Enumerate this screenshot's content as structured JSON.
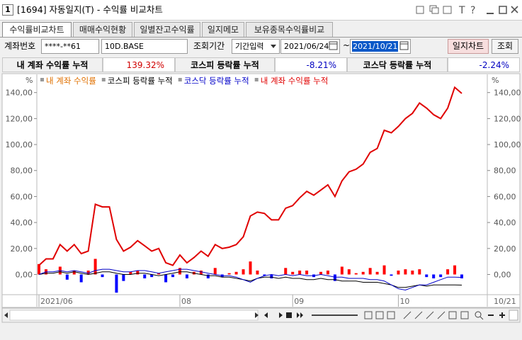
{
  "window": {
    "icon": "1",
    "title": "[1694] 자동일지(T) - 수익률 비교차트",
    "tool_icons": [
      "T",
      "?"
    ]
  },
  "tabs": [
    "수익률비교차트",
    "매매수익현황",
    "일별잔고수익률",
    "일지메모",
    "보유종목수익률비교"
  ],
  "form": {
    "account_label": "계좌번호",
    "account": "****-**61",
    "account_name": "10D.BASE",
    "period_label": "조회기간",
    "period_mode": "기간입력",
    "start_date": "2021/06/24",
    "separator": "~",
    "end_date": "2021/10/21",
    "buttons": [
      "일지차트",
      "조회"
    ]
  },
  "summary": [
    {
      "label": "내 계좌 수익률 누적",
      "value": "139.32%"
    },
    {
      "label": "코스피 등락률 누적",
      "value": "-8.21%"
    },
    {
      "label": "코스닥 등락률 누적",
      "value": "-2.24%"
    }
  ],
  "chart_data": {
    "type": "combo",
    "y_unit": "%",
    "x_end_label": "10/21",
    "categories": [
      "2021/06",
      null,
      null,
      null,
      null,
      null,
      null,
      null,
      null,
      null,
      null,
      null,
      null,
      null,
      null,
      null,
      null,
      null,
      null,
      null,
      "08",
      null,
      null,
      null,
      null,
      null,
      null,
      null,
      null,
      null,
      null,
      null,
      null,
      null,
      null,
      null,
      "09",
      null,
      null,
      null,
      null,
      null,
      null,
      null,
      null,
      null,
      null,
      null,
      null,
      null,
      null,
      "10",
      null,
      null,
      null,
      null,
      null,
      null,
      null,
      null,
      null
    ],
    "ylim": [
      -15,
      154
    ],
    "yticks": [
      {
        "value": 0,
        "label": "0,00"
      },
      {
        "value": 20,
        "label": "20,00"
      },
      {
        "value": 40,
        "label": "40,00"
      },
      {
        "value": 60,
        "label": "60,00"
      },
      {
        "value": 80,
        "label": "80,00"
      },
      {
        "value": 100,
        "label": "100,00"
      },
      {
        "value": 120,
        "label": "120,00"
      },
      {
        "value": 140,
        "label": "140,00"
      }
    ],
    "grid": false,
    "series": [
      {
        "name": "내 계좌 수익률",
        "type": "bar",
        "color": "#e07000",
        "pos_color": "#ff0000",
        "neg_color": "#0000ff",
        "values": [
          8,
          4,
          0,
          6,
          -4,
          3,
          -6,
          3,
          12,
          -2,
          0,
          -14,
          -5,
          2,
          3,
          -3,
          -2,
          1,
          -6,
          -2,
          5,
          -3,
          2,
          3,
          -3,
          5,
          -2,
          1,
          2,
          4,
          10,
          3,
          -1,
          -3,
          0,
          5,
          2,
          3,
          3,
          -2,
          2,
          3,
          -5,
          6,
          4,
          1,
          2,
          5,
          2,
          7,
          -1,
          3,
          4,
          3,
          4,
          -2,
          -3,
          -2,
          4,
          7,
          -3
        ]
      },
      {
        "name": "코스피 등락률 누적",
        "type": "line",
        "color": "#000000",
        "values": [
          0,
          1,
          1,
          2,
          1,
          2,
          1,
          0,
          1,
          2,
          2,
          1,
          0,
          0,
          1,
          1,
          0,
          -1,
          0,
          1,
          2,
          2,
          1,
          0,
          -1,
          -1,
          -2,
          -2,
          -3,
          -4,
          -5,
          -3,
          -2,
          -2,
          -3,
          -2,
          -3,
          -3,
          -4,
          -4,
          -3,
          -4,
          -4,
          -5,
          -5,
          -5,
          -6,
          -6,
          -6,
          -7,
          -8,
          -10,
          -10,
          -9,
          -8,
          -9,
          -8,
          -8,
          -8,
          -8,
          -8.21
        ]
      },
      {
        "name": "코스닥 등락률 누적",
        "type": "line",
        "color": "#0000c8",
        "values": [
          0,
          2,
          2,
          3,
          2,
          3,
          2,
          1,
          3,
          4,
          4,
          3,
          2,
          2,
          3,
          3,
          2,
          1,
          2,
          3,
          4,
          4,
          3,
          2,
          1,
          0,
          -1,
          -1,
          -2,
          -4,
          -6,
          -3,
          -1,
          0,
          -1,
          0,
          -1,
          0,
          -1,
          -1,
          0,
          -1,
          -2,
          -2,
          -3,
          -3,
          -3,
          -4,
          -4,
          -5,
          -8,
          -11,
          -12,
          -10,
          -8,
          -8,
          -6,
          -4,
          -2,
          -2,
          -2.24
        ]
      },
      {
        "name": "내 계좌 수익률 누적",
        "type": "line",
        "color": "#e00000",
        "values": [
          7,
          12,
          12,
          23,
          18,
          23,
          16,
          18,
          54,
          52,
          52,
          27,
          18,
          21,
          26,
          22,
          18,
          20,
          9,
          7,
          15,
          9,
          13,
          18,
          14,
          23,
          20,
          21,
          23,
          29,
          45,
          48,
          47,
          42,
          42,
          51,
          53,
          59,
          64,
          61,
          65,
          69,
          60,
          72,
          79,
          81,
          85,
          94,
          97,
          111,
          109,
          114,
          120,
          124,
          132,
          128,
          123,
          120,
          128,
          144,
          139.32
        ]
      }
    ]
  }
}
